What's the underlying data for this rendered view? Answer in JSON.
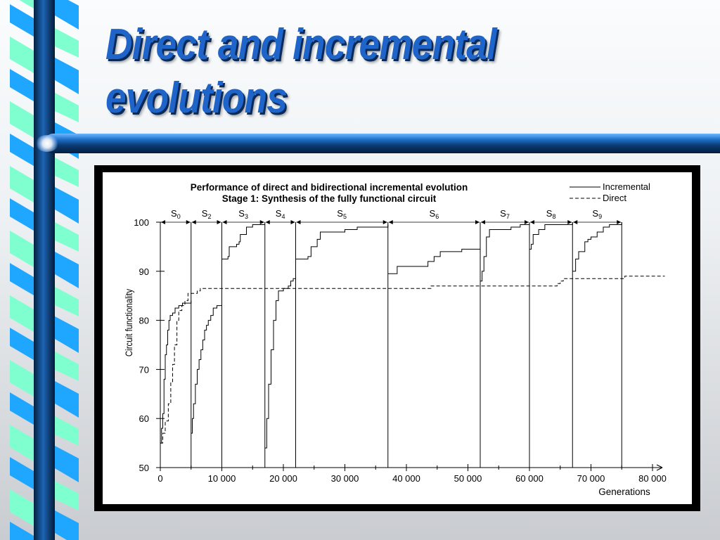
{
  "slide": {
    "title_line1": "Direct and incremental",
    "title_line2": "evolutions"
  },
  "colors": {
    "title": "#1f64c8",
    "ribbon_blue": "#1fa7ff",
    "ribbon_mint": "#7fffd0",
    "bar_dark": "#0b3b73"
  },
  "chart_data": {
    "type": "line",
    "title": "Performance of direct and bidirectional incremental evolution",
    "subtitle": "Stage 1: Synthesis of the fully functional circuit",
    "xlabel": "Generations",
    "ylabel": "Circuit   functionality",
    "xlim": [
      0,
      80000
    ],
    "ylim": [
      50,
      100
    ],
    "xticks": [
      0,
      10000,
      20000,
      30000,
      40000,
      50000,
      60000,
      70000,
      80000
    ],
    "xtick_labels": [
      "0",
      "10 000",
      "20 000",
      "30 000",
      "40 000",
      "50 000",
      "60 000",
      "70 000",
      "80 000"
    ],
    "yticks": [
      50,
      60,
      70,
      80,
      90,
      100
    ],
    "ytick_labels": [
      "50",
      "60",
      "70",
      "80",
      "90",
      "100"
    ],
    "legend_position": "top-right",
    "stages": [
      {
        "name": "S",
        "sub": "0",
        "start": 0,
        "end": 5000
      },
      {
        "name": "S",
        "sub": "2",
        "start": 5000,
        "end": 10000
      },
      {
        "name": "S",
        "sub": "3",
        "start": 10000,
        "end": 17000
      },
      {
        "name": "S",
        "sub": "4",
        "start": 17000,
        "end": 22000
      },
      {
        "name": "S",
        "sub": "5",
        "start": 22000,
        "end": 37000
      },
      {
        "name": "S",
        "sub": "6",
        "start": 37000,
        "end": 52000
      },
      {
        "name": "S",
        "sub": "7",
        "start": 52000,
        "end": 60000
      },
      {
        "name": "S",
        "sub": "8",
        "start": 60000,
        "end": 67000
      },
      {
        "name": "S",
        "sub": "9",
        "start": 67000,
        "end": 75000
      }
    ],
    "series": [
      {
        "name": "Incremental",
        "style": "solid",
        "segments": [
          [
            [
              0,
              55
            ],
            [
              200,
              58
            ],
            [
              400,
              61
            ],
            [
              600,
              68
            ],
            [
              800,
              73
            ],
            [
              1000,
              75
            ],
            [
              1200,
              78
            ],
            [
              1400,
              80
            ],
            [
              1600,
              81
            ],
            [
              2000,
              81.5
            ],
            [
              2400,
              82.5
            ],
            [
              3000,
              83
            ],
            [
              3600,
              83.5
            ],
            [
              4200,
              83.5
            ],
            [
              5000,
              84
            ]
          ],
          [
            [
              5000,
              57
            ],
            [
              5200,
              60
            ],
            [
              5400,
              63
            ],
            [
              5700,
              67
            ],
            [
              6000,
              70
            ],
            [
              6300,
              72
            ],
            [
              6600,
              74
            ],
            [
              6900,
              76
            ],
            [
              7200,
              78
            ],
            [
              7500,
              79
            ],
            [
              7800,
              80
            ],
            [
              8200,
              81
            ],
            [
              8600,
              82.5
            ],
            [
              9200,
              83
            ],
            [
              10000,
              83
            ]
          ],
          [
            [
              10000,
              92.5
            ],
            [
              11000,
              93
            ],
            [
              11200,
              95
            ],
            [
              12400,
              95.5
            ],
            [
              12800,
              96
            ],
            [
              13000,
              97.5
            ],
            [
              14000,
              99
            ],
            [
              15000,
              99.5
            ],
            [
              17000,
              99.5
            ]
          ],
          [
            [
              17000,
              54
            ],
            [
              17300,
              60
            ],
            [
              17600,
              67
            ],
            [
              18000,
              74
            ],
            [
              18400,
              80
            ],
            [
              18800,
              84
            ],
            [
              19200,
              86
            ],
            [
              20000,
              86.5
            ],
            [
              20800,
              87
            ],
            [
              21200,
              88
            ],
            [
              21600,
              88.5
            ],
            [
              22000,
              88.5
            ]
          ],
          [
            [
              22000,
              92.5
            ],
            [
              23000,
              92.5
            ],
            [
              24000,
              93
            ],
            [
              24500,
              95
            ],
            [
              25500,
              96.5
            ],
            [
              26000,
              98
            ],
            [
              30000,
              98.5
            ],
            [
              32000,
              99
            ],
            [
              37000,
              99.5
            ]
          ],
          [
            [
              37000,
              89.5
            ],
            [
              38000,
              89.5
            ],
            [
              38500,
              91
            ],
            [
              43000,
              91
            ],
            [
              43500,
              92
            ],
            [
              44500,
              93
            ],
            [
              45500,
              94
            ],
            [
              49000,
              94.5
            ],
            [
              52000,
              95
            ]
          ],
          [
            [
              52000,
              88
            ],
            [
              52300,
              90
            ],
            [
              52600,
              93
            ],
            [
              53000,
              97
            ],
            [
              53500,
              98.5
            ],
            [
              57000,
              99
            ],
            [
              58500,
              99.5
            ],
            [
              60000,
              100
            ]
          ],
          [
            [
              60000,
              94.5
            ],
            [
              60300,
              95.5
            ],
            [
              60600,
              97.5
            ],
            [
              61500,
              98.5
            ],
            [
              62500,
              99.5
            ],
            [
              65000,
              99.5
            ],
            [
              67000,
              100
            ]
          ],
          [
            [
              67000,
              90
            ],
            [
              67500,
              92.5
            ],
            [
              68000,
              94
            ],
            [
              69000,
              96
            ],
            [
              69500,
              96.5
            ],
            [
              70000,
              97
            ],
            [
              71000,
              98
            ],
            [
              72000,
              99
            ],
            [
              73000,
              99.5
            ],
            [
              75000,
              100
            ]
          ]
        ]
      },
      {
        "name": "Direct",
        "style": "dashed",
        "segments": [
          [
            [
              0,
              55
            ],
            [
              400,
              57
            ],
            [
              800,
              59.5
            ],
            [
              1300,
              63
            ],
            [
              1700,
              67.5
            ],
            [
              2000,
              71
            ],
            [
              2300,
              75
            ],
            [
              2700,
              80
            ],
            [
              3000,
              82
            ],
            [
              3500,
              83
            ],
            [
              4000,
              84
            ],
            [
              4500,
              85.5
            ],
            [
              5500,
              85.5
            ],
            [
              6000,
              86
            ],
            [
              6500,
              86.5
            ],
            [
              10000,
              86.5
            ],
            [
              20000,
              86.5
            ],
            [
              30000,
              86.5
            ],
            [
              43500,
              86.5
            ],
            [
              44000,
              87
            ],
            [
              60000,
              87
            ],
            [
              64000,
              87
            ],
            [
              64500,
              87.5
            ],
            [
              65000,
              88
            ],
            [
              65500,
              88.5
            ],
            [
              75000,
              88.5
            ],
            [
              75500,
              89
            ],
            [
              82000,
              89
            ]
          ]
        ]
      }
    ]
  }
}
